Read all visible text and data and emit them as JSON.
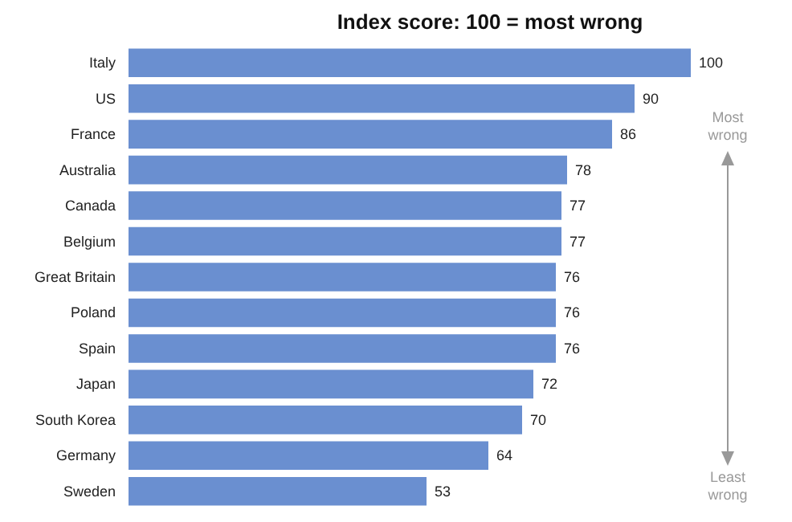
{
  "chart_data": {
    "type": "bar",
    "orientation": "horizontal",
    "title": "Index score: 100 = most wrong",
    "categories": [
      "Italy",
      "US",
      "France",
      "Australia",
      "Canada",
      "Belgium",
      "Great Britain",
      "Poland",
      "Spain",
      "Japan",
      "South Korea",
      "Germany",
      "Sweden"
    ],
    "values": [
      100,
      90,
      86,
      78,
      77,
      77,
      76,
      76,
      76,
      72,
      70,
      64,
      53
    ],
    "color": "#6a8fd0",
    "data_labels": true,
    "annotations": [
      "Most wrong",
      "Least wrong"
    ]
  }
}
